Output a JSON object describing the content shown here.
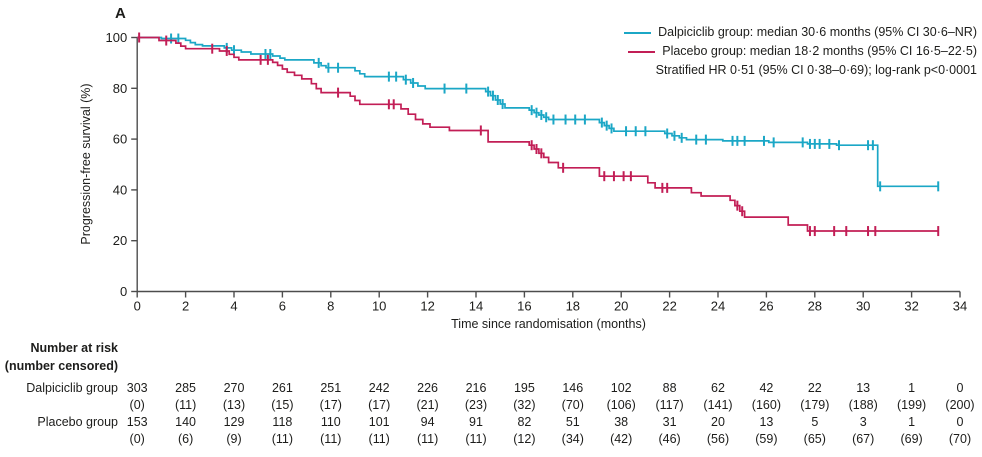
{
  "panel_label": "A",
  "legend": {
    "entries": [
      {
        "label": "Dalpiciclib group: median 30·6 months (95% CI 30·6–NR)",
        "color": "#1BA7C6"
      },
      {
        "label": "Placebo group: median 18·2 months (95% CI 16·5–22·5)",
        "color": "#C21E56"
      }
    ],
    "note": "Stratified HR 0·51 (95% CI 0·38–0·69); log-rank p<0·0001"
  },
  "axes": {
    "y": {
      "label": "Progression-free survival (%)",
      "ticks": [
        0,
        20,
        40,
        60,
        80,
        100
      ],
      "range": [
        0,
        100
      ]
    },
    "x": {
      "label": "Time since randomisation (months)",
      "ticks": [
        0,
        2,
        4,
        6,
        8,
        10,
        12,
        14,
        16,
        18,
        20,
        22,
        24,
        26,
        28,
        30,
        32,
        34
      ],
      "range": [
        0,
        34
      ]
    }
  },
  "chart_data": {
    "type": "line",
    "subtype": "kaplan-meier-step",
    "grid": false,
    "legend_position": "top-right",
    "xlim": [
      0,
      34
    ],
    "ylim": [
      0,
      100
    ],
    "xlabel": "Time since randomisation (months)",
    "ylabel": "Progression-free survival (%)",
    "series": [
      {
        "name": "Dalpiciclib group",
        "color": "#1BA7C6",
        "median_months": "30·6",
        "ci": "30·6–NR",
        "points": [
          [
            0,
            100
          ],
          [
            1.0,
            99.6
          ],
          [
            2.0,
            98.9
          ],
          [
            2.2,
            98.0
          ],
          [
            2.4,
            97.2
          ],
          [
            2.7,
            96.7
          ],
          [
            3.6,
            95.9
          ],
          [
            3.9,
            95.0
          ],
          [
            4.3,
            94.3
          ],
          [
            4.7,
            93.5
          ],
          [
            5.6,
            92.7
          ],
          [
            5.9,
            91.9
          ],
          [
            6.1,
            91.2
          ],
          [
            7.3,
            90.0
          ],
          [
            7.6,
            88.9
          ],
          [
            7.8,
            88.1
          ],
          [
            9.0,
            86.9
          ],
          [
            9.2,
            85.7
          ],
          [
            9.4,
            84.6
          ],
          [
            11.0,
            83.4
          ],
          [
            11.3,
            82.1
          ],
          [
            11.6,
            80.9
          ],
          [
            11.9,
            79.9
          ],
          [
            14.4,
            78.7
          ],
          [
            14.6,
            77.1
          ],
          [
            14.8,
            75.4
          ],
          [
            15.0,
            73.8
          ],
          [
            15.2,
            72.3
          ],
          [
            16.2,
            71.4
          ],
          [
            16.4,
            70.4
          ],
          [
            16.6,
            69.5
          ],
          [
            16.8,
            68.6
          ],
          [
            17.0,
            67.7
          ],
          [
            19.1,
            66.5
          ],
          [
            19.3,
            65.3
          ],
          [
            19.5,
            64.2
          ],
          [
            19.7,
            63.1
          ],
          [
            21.8,
            62.2
          ],
          [
            22.1,
            61.3
          ],
          [
            22.4,
            60.5
          ],
          [
            22.7,
            59.8
          ],
          [
            24.2,
            59.3
          ],
          [
            26.1,
            58.7
          ],
          [
            27.7,
            58.1
          ],
          [
            28.9,
            57.6
          ],
          [
            30.6,
            41.4
          ],
          [
            33.1,
            41.4
          ]
        ],
        "censor_times": [
          1.4,
          1.7,
          3.7,
          4.0,
          5.3,
          5.5,
          7.5,
          7.9,
          8.3,
          10.4,
          10.7,
          11.1,
          11.4,
          12.7,
          13.6,
          14.5,
          14.7,
          14.9,
          15.1,
          16.3,
          16.5,
          16.7,
          16.9,
          17.2,
          17.7,
          18.1,
          18.5,
          19.2,
          19.4,
          19.6,
          20.2,
          20.6,
          21.0,
          21.9,
          22.2,
          22.5,
          23.1,
          23.5,
          24.6,
          24.8,
          25.1,
          25.9,
          26.3,
          27.5,
          27.8,
          28.0,
          28.2,
          28.6,
          29.0,
          30.2,
          30.4,
          30.7,
          33.1
        ]
      },
      {
        "name": "Placebo group",
        "color": "#C21E56",
        "median_months": "18·2",
        "ci": "16·5–22·5",
        "points": [
          [
            0,
            100
          ],
          [
            0.9,
            98.8
          ],
          [
            1.6,
            97.8
          ],
          [
            1.8,
            96.6
          ],
          [
            2.0,
            95.6
          ],
          [
            3.4,
            94.7
          ],
          [
            3.8,
            93.4
          ],
          [
            4.0,
            92.2
          ],
          [
            4.2,
            91.2
          ],
          [
            5.6,
            90.2
          ],
          [
            5.8,
            89.0
          ],
          [
            6.0,
            87.6
          ],
          [
            6.2,
            86.3
          ],
          [
            6.5,
            85.1
          ],
          [
            6.8,
            83.7
          ],
          [
            7.2,
            81.8
          ],
          [
            7.4,
            79.9
          ],
          [
            7.6,
            78.3
          ],
          [
            8.8,
            76.9
          ],
          [
            9.0,
            75.2
          ],
          [
            9.2,
            73.7
          ],
          [
            10.9,
            71.9
          ],
          [
            11.2,
            69.8
          ],
          [
            11.5,
            67.7
          ],
          [
            11.8,
            66.0
          ],
          [
            12.1,
            64.7
          ],
          [
            12.9,
            63.4
          ],
          [
            14.5,
            58.9
          ],
          [
            16.2,
            57.6
          ],
          [
            16.4,
            56.1
          ],
          [
            16.6,
            54.4
          ],
          [
            16.8,
            52.8
          ],
          [
            17.0,
            50.8
          ],
          [
            17.4,
            48.7
          ],
          [
            19.1,
            45.4
          ],
          [
            21.1,
            42.8
          ],
          [
            21.4,
            40.8
          ],
          [
            22.9,
            38.9
          ],
          [
            23.3,
            37.6
          ],
          [
            24.5,
            35.9
          ],
          [
            24.7,
            33.8
          ],
          [
            24.9,
            31.6
          ],
          [
            25.1,
            29.3
          ],
          [
            26.9,
            26.2
          ],
          [
            27.7,
            23.8
          ],
          [
            33.1,
            23.8
          ]
        ],
        "censor_times": [
          0.08,
          1.2,
          3.1,
          3.7,
          5.1,
          5.4,
          8.3,
          10.4,
          10.6,
          14.2,
          16.3,
          16.5,
          16.7,
          17.6,
          19.3,
          19.7,
          20.1,
          20.4,
          21.7,
          21.9,
          24.8,
          25.0,
          27.8,
          28.0,
          28.8,
          29.3,
          30.2,
          30.5,
          33.1
        ]
      }
    ]
  },
  "at_risk": {
    "header_line1": "Number at risk",
    "header_line2": "(number censored)",
    "times": [
      0,
      2,
      4,
      6,
      8,
      10,
      12,
      14,
      16,
      18,
      20,
      22,
      24,
      26,
      28,
      30,
      32,
      34
    ],
    "rows": [
      {
        "label": "Dalpiciclib group",
        "counts": [
          "303",
          "285",
          "270",
          "261",
          "251",
          "242",
          "226",
          "216",
          "195",
          "146",
          "102",
          "88",
          "62",
          "42",
          "22",
          "13",
          "1",
          "0"
        ],
        "censored": [
          "(0)",
          "(11)",
          "(13)",
          "(15)",
          "(17)",
          "(17)",
          "(21)",
          "(23)",
          "(32)",
          "(70)",
          "(106)",
          "(117)",
          "(141)",
          "(160)",
          "(179)",
          "(188)",
          "(199)",
          "(200)"
        ]
      },
      {
        "label": "Placebo group",
        "counts": [
          "153",
          "140",
          "129",
          "118",
          "110",
          "101",
          "94",
          "91",
          "82",
          "51",
          "38",
          "31",
          "20",
          "13",
          "5",
          "3",
          "1",
          "0"
        ],
        "censored": [
          "(0)",
          "(6)",
          "(9)",
          "(11)",
          "(11)",
          "(11)",
          "(11)",
          "(11)",
          "(12)",
          "(34)",
          "(42)",
          "(46)",
          "(56)",
          "(59)",
          "(65)",
          "(67)",
          "(69)",
          "(70)"
        ]
      }
    ]
  },
  "colors": {
    "dalpiciclib": "#1BA7C6",
    "placebo": "#C21E56",
    "axis": "#4d4d4d",
    "text": "#1d1d1b"
  }
}
